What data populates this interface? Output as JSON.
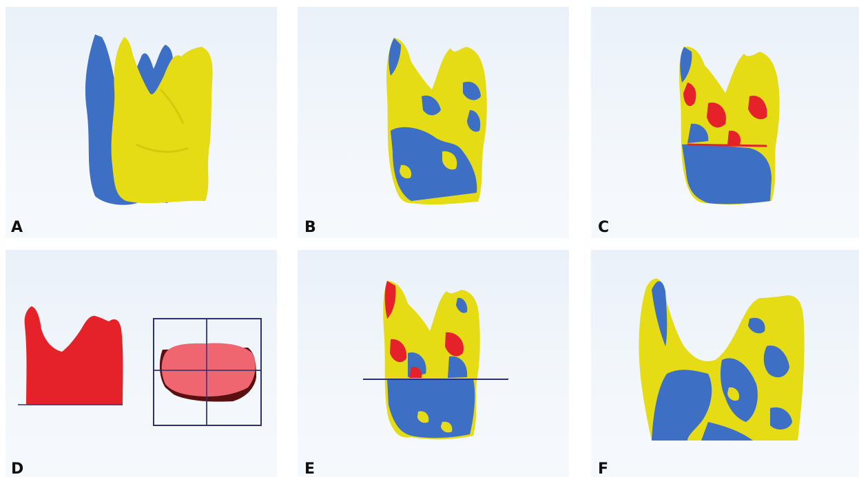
{
  "panels": [
    {
      "id": "A",
      "label": "A"
    },
    {
      "id": "B",
      "label": "B"
    },
    {
      "id": "C",
      "label": "C"
    },
    {
      "id": "D",
      "label": "D"
    },
    {
      "id": "E",
      "label": "E"
    },
    {
      "id": "F",
      "label": "F"
    }
  ],
  "colors": {
    "blue": "#3d6fc4",
    "yellow": "#e6dc16",
    "red": "#e5222a",
    "pink": "#ef6670",
    "frame": "#2b2f7a"
  }
}
